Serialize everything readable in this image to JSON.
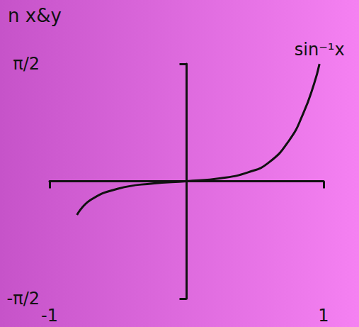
{
  "chart_data": {
    "type": "line",
    "title": "n x&y",
    "x": [
      -0.8,
      -0.7,
      -0.5,
      -0.25,
      0,
      0.25,
      0.45,
      0.6,
      0.75,
      0.85,
      0.93,
      0.97
    ],
    "series": [
      {
        "name": "sin⁻¹x",
        "color": "#111111",
        "values": [
          -0.45,
          -0.25,
          -0.1,
          -0.03,
          0,
          0.04,
          0.12,
          0.25,
          0.55,
          0.9,
          1.3,
          1.57
        ]
      }
    ],
    "xlim": [
      -1,
      1
    ],
    "xticks": [
      -1,
      1
    ],
    "ylim": [
      -1.5708,
      1.5708
    ],
    "yticks": [
      {
        "value": -1.5708,
        "label": "-π/2"
      },
      {
        "value": 1.5708,
        "label": "π/2"
      }
    ],
    "grid": false
  }
}
